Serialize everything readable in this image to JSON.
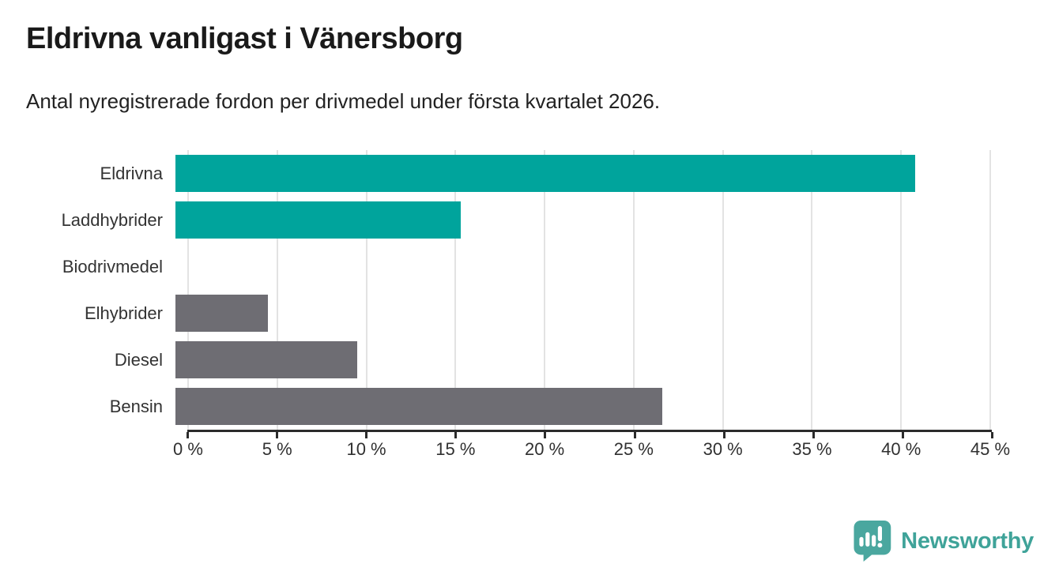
{
  "header": {
    "title": "Eldrivna vanligast i Vänersborg",
    "subtitle": "Antal nyregistrerade fordon per drivmedel under första kvartalet 2026."
  },
  "chart_data": {
    "type": "bar",
    "orientation": "horizontal",
    "title": "Eldrivna vanligast i Vänersborg",
    "xlabel": "",
    "ylabel": "",
    "categories": [
      "Eldrivna",
      "Laddhybrider",
      "Biodrivmedel",
      "Elhybrider",
      "Diesel",
      "Bensin"
    ],
    "values": [
      41.5,
      16,
      0,
      5.2,
      10.2,
      27.3
    ],
    "value_suffix": "%",
    "bar_colors": [
      "#00a49c",
      "#00a49c",
      "#6e6d73",
      "#6e6d73",
      "#6e6d73",
      "#6e6d73"
    ],
    "xlim": [
      0,
      45
    ],
    "x_tick_values": [
      0,
      5,
      10,
      15,
      20,
      25,
      30,
      35,
      40,
      45
    ],
    "x_tick_labels": [
      "0 %",
      "5 %",
      "10 %",
      "15 %",
      "20 %",
      "25 %",
      "30 %",
      "35 %",
      "40 %",
      "45 %"
    ],
    "grid": "vertical",
    "legend": "none"
  },
  "footer": {
    "brand": "Newsworthy",
    "logo_icon": "bar-chart-speech-bubble-icon"
  },
  "colors": {
    "accent_teal": "#00a49c",
    "bar_gray": "#6e6d73",
    "grid": "#e3e3e3",
    "axis": "#2b2b2b",
    "title_text": "#1a1a1a",
    "label_text": "#333333",
    "brand_teal": "#3fa399",
    "logo_fill": "#4aa79f"
  }
}
